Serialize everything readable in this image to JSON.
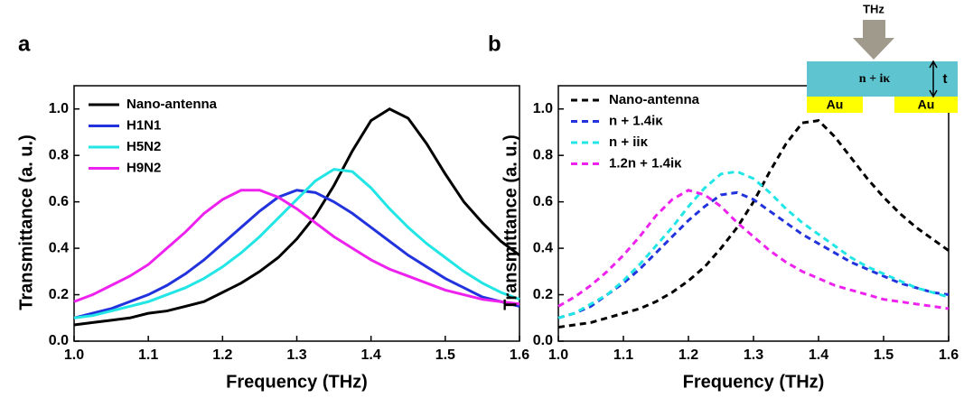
{
  "chart_data": [
    {
      "type": "line",
      "panel_label": "a",
      "x_label": "Frequency (THz)",
      "y_label": "Transmittance (a. u.)",
      "x": [
        1.0,
        1.025,
        1.05,
        1.075,
        1.1,
        1.125,
        1.15,
        1.175,
        1.2,
        1.225,
        1.25,
        1.275,
        1.3,
        1.325,
        1.35,
        1.375,
        1.4,
        1.425,
        1.45,
        1.475,
        1.5,
        1.525,
        1.55,
        1.575,
        1.6
      ],
      "xlim": [
        1.0,
        1.6
      ],
      "ylim": [
        0,
        1.1
      ],
      "xticks": [
        {
          "value": 1.0,
          "label": "1.0"
        },
        1.1,
        1.2,
        1.3,
        1.4,
        1.5,
        1.6
      ],
      "yticks": [
        {
          "value": 0,
          "label": "0.0"
        },
        0.2,
        0.4,
        0.6,
        0.8,
        {
          "value": 1,
          "label": "1.0"
        }
      ],
      "series": [
        {
          "name": "Nano-antenna",
          "color": "#000000",
          "line_style": "solid",
          "values": [
            0.07,
            0.08,
            0.09,
            0.1,
            0.12,
            0.13,
            0.15,
            0.17,
            0.21,
            0.25,
            0.3,
            0.36,
            0.44,
            0.54,
            0.67,
            0.82,
            0.95,
            1.0,
            0.96,
            0.85,
            0.72,
            0.6,
            0.51,
            0.43,
            0.37
          ]
        },
        {
          "name": "H1N1",
          "color": "#2233dd",
          "line_style": "solid",
          "values": [
            0.1,
            0.12,
            0.14,
            0.17,
            0.2,
            0.24,
            0.29,
            0.35,
            0.42,
            0.49,
            0.56,
            0.62,
            0.65,
            0.64,
            0.6,
            0.55,
            0.49,
            0.43,
            0.37,
            0.32,
            0.27,
            0.23,
            0.19,
            0.17,
            0.15
          ]
        },
        {
          "name": "H5N2",
          "color": "#22e5e5",
          "line_style": "solid",
          "values": [
            0.1,
            0.11,
            0.13,
            0.15,
            0.17,
            0.2,
            0.23,
            0.27,
            0.32,
            0.38,
            0.45,
            0.53,
            0.61,
            0.69,
            0.74,
            0.73,
            0.66,
            0.57,
            0.49,
            0.42,
            0.36,
            0.3,
            0.25,
            0.21,
            0.18
          ]
        },
        {
          "name": "H9N2",
          "color": "#ee22ee",
          "line_style": "solid",
          "values": [
            0.17,
            0.2,
            0.24,
            0.28,
            0.33,
            0.4,
            0.47,
            0.55,
            0.61,
            0.65,
            0.65,
            0.62,
            0.57,
            0.51,
            0.45,
            0.4,
            0.35,
            0.31,
            0.28,
            0.25,
            0.22,
            0.2,
            0.18,
            0.17,
            0.16
          ]
        }
      ]
    },
    {
      "type": "line",
      "panel_label": "b",
      "x_label": "Frequency (THz)",
      "y_label": "Transmittance (a. u.)",
      "x": [
        1.0,
        1.025,
        1.05,
        1.075,
        1.1,
        1.125,
        1.15,
        1.175,
        1.2,
        1.225,
        1.25,
        1.275,
        1.3,
        1.325,
        1.35,
        1.375,
        1.4,
        1.425,
        1.45,
        1.475,
        1.5,
        1.525,
        1.55,
        1.575,
        1.6
      ],
      "xlim": [
        1.0,
        1.6
      ],
      "ylim": [
        0,
        1.1
      ],
      "xticks": [
        {
          "value": 1.0,
          "label": "1.0"
        },
        1.1,
        1.2,
        1.3,
        1.4,
        1.5,
        1.6
      ],
      "yticks": [
        {
          "value": 0,
          "label": "0.0"
        },
        0.2,
        0.4,
        0.6,
        0.8,
        {
          "value": 1,
          "label": "1.0"
        }
      ],
      "series": [
        {
          "name": "Nano-antenna",
          "color": "#000000",
          "line_style": "dashed",
          "values": [
            0.06,
            0.07,
            0.08,
            0.1,
            0.12,
            0.14,
            0.17,
            0.21,
            0.26,
            0.32,
            0.4,
            0.49,
            0.6,
            0.73,
            0.85,
            0.94,
            0.95,
            0.88,
            0.79,
            0.7,
            0.62,
            0.55,
            0.49,
            0.44,
            0.39
          ]
        },
        {
          "name": "n + 1.4iκ",
          "color": "#2233dd",
          "line_style": "dashed",
          "values": [
            0.1,
            0.12,
            0.15,
            0.2,
            0.25,
            0.31,
            0.38,
            0.45,
            0.52,
            0.58,
            0.63,
            0.64,
            0.61,
            0.56,
            0.51,
            0.46,
            0.42,
            0.38,
            0.34,
            0.31,
            0.28,
            0.25,
            0.23,
            0.21,
            0.2
          ]
        },
        {
          "name": "n + iiκ",
          "color": "#22e5e5",
          "line_style": "dashed",
          "values": [
            0.1,
            0.12,
            0.16,
            0.2,
            0.26,
            0.33,
            0.41,
            0.49,
            0.58,
            0.66,
            0.72,
            0.73,
            0.7,
            0.64,
            0.57,
            0.51,
            0.46,
            0.41,
            0.36,
            0.32,
            0.29,
            0.26,
            0.23,
            0.21,
            0.19
          ]
        },
        {
          "name": "1.2n + 1.4iκ",
          "color": "#ee22ee",
          "line_style": "dashed",
          "values": [
            0.15,
            0.19,
            0.24,
            0.3,
            0.37,
            0.45,
            0.54,
            0.61,
            0.65,
            0.63,
            0.58,
            0.51,
            0.45,
            0.39,
            0.34,
            0.3,
            0.27,
            0.24,
            0.22,
            0.2,
            0.18,
            0.17,
            0.16,
            0.15,
            0.14
          ]
        }
      ],
      "inset": {
        "arrow_label": "THz",
        "film_label": "n + iκ",
        "thickness_label": "t",
        "electrode_labels": [
          "Au",
          "Au"
        ]
      }
    }
  ]
}
